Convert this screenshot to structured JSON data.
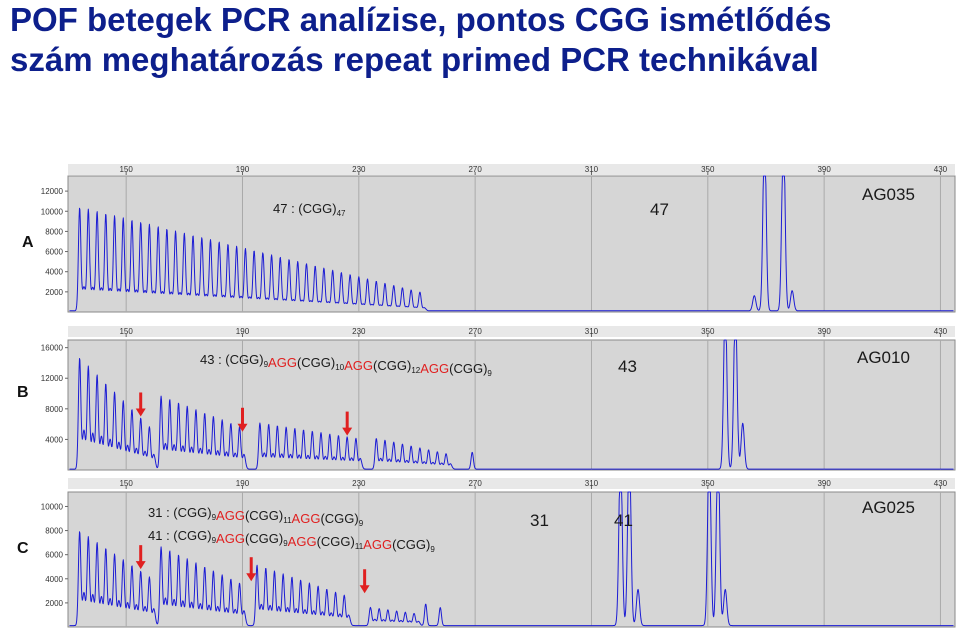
{
  "slide": {
    "title_line1": "POF betegek PCR analízise, pontos CGG ismétlődés",
    "title_line2": "szám meghatározás repeat primed PCR technikával"
  },
  "chart_data": [
    {
      "type": "line",
      "panel": "A",
      "sample": "AG035",
      "x_ticks": [
        150,
        190,
        230,
        270,
        310,
        350,
        390,
        430
      ],
      "xlim": [
        130,
        435
      ],
      "y_ticks": [
        2000,
        4000,
        6000,
        8000,
        10000,
        12000
      ],
      "ylim": [
        0,
        13500
      ],
      "peak_label": "47",
      "annotations": [
        {
          "parts": [
            {
              "t": "47 : (CGG)",
              "c": "#1a1a1a"
            },
            {
              "t": "47",
              "c": "#1a1a1a",
              "sub": true
            }
          ]
        }
      ],
      "stutter": {
        "start": 134,
        "step": 3,
        "end": 253,
        "base": 4300,
        "peak_first": 10200,
        "peak_last": 1700
      },
      "peaks": [
        {
          "x": 369.5,
          "y": 18000
        },
        {
          "x": 376,
          "y": 18000
        },
        {
          "x": 366,
          "y": 1500
        },
        {
          "x": 379,
          "y": 2000
        }
      ],
      "arrows": []
    },
    {
      "type": "line",
      "panel": "B",
      "sample": "AG010",
      "x_ticks": [
        150,
        190,
        230,
        270,
        310,
        350,
        390,
        430
      ],
      "xlim": [
        130,
        435
      ],
      "y_ticks": [
        4000,
        8000,
        12000,
        16000
      ],
      "ylim": [
        0,
        17000
      ],
      "peak_label": "43",
      "annotations": [
        {
          "parts": [
            {
              "t": "43 : (CGG)",
              "c": "#1a1a1a"
            },
            {
              "t": "9",
              "c": "#1a1a1a",
              "sub": true
            },
            {
              "t": "AGG",
              "c": "#e02020"
            },
            {
              "t": "(CGG)",
              "c": "#1a1a1a"
            },
            {
              "t": "10",
              "c": "#1a1a1a",
              "sub": true
            },
            {
              "t": "AGG",
              "c": "#e02020"
            },
            {
              "t": "(CGG)",
              "c": "#1a1a1a"
            },
            {
              "t": "12",
              "c": "#1a1a1a",
              "sub": true
            },
            {
              "t": "AGG",
              "c": "#e02020"
            },
            {
              "t": "(CGG)",
              "c": "#1a1a1a"
            },
            {
              "t": "9",
              "c": "#1a1a1a",
              "sub": true
            }
          ]
        }
      ],
      "clusters": [
        {
          "start": 134,
          "n": 9,
          "peak_first": 14500,
          "peak_last": 5500
        },
        {
          "start": 162,
          "n": 10,
          "peak_first": 9500,
          "peak_last": 5500
        },
        {
          "start": 196,
          "n": 12,
          "peak_first": 6000,
          "peak_last": 4000
        },
        {
          "start": 236,
          "n": 9,
          "peak_first": 4000,
          "peak_last": 2000
        }
      ],
      "peaks": [
        {
          "x": 356,
          "y": 22000
        },
        {
          "x": 359.5,
          "y": 22000
        },
        {
          "x": 362,
          "y": 6000
        }
      ],
      "small_peaks": [
        {
          "x": 269,
          "y": 2200
        }
      ],
      "arrows": [
        {
          "x": 155,
          "y": 7000
        },
        {
          "x": 190,
          "y": 5000
        },
        {
          "x": 226,
          "y": 4500
        }
      ]
    },
    {
      "type": "line",
      "panel": "C",
      "sample": "AG025",
      "x_ticks": [
        150,
        190,
        230,
        270,
        310,
        350,
        390,
        430
      ],
      "xlim": [
        130,
        435
      ],
      "y_ticks": [
        2000,
        4000,
        6000,
        8000,
        10000
      ],
      "ylim": [
        0,
        11200
      ],
      "peak_label_31": "31",
      "peak_label_41": "41",
      "annotations": [
        {
          "parts": [
            {
              "t": "31 : (CGG)",
              "c": "#1a1a1a"
            },
            {
              "t": "9",
              "c": "#1a1a1a",
              "sub": true
            },
            {
              "t": "AGG",
              "c": "#e02020"
            },
            {
              "t": "(CGG)",
              "c": "#1a1a1a"
            },
            {
              "t": "11",
              "c": "#1a1a1a",
              "sub": true
            },
            {
              "t": "AGG",
              "c": "#e02020"
            },
            {
              "t": "(CGG)",
              "c": "#1a1a1a"
            },
            {
              "t": "9",
              "c": "#1a1a1a",
              "sub": true
            }
          ]
        },
        {
          "parts": [
            {
              "t": "41 : (CGG)",
              "c": "#1a1a1a"
            },
            {
              "t": "9",
              "c": "#1a1a1a",
              "sub": true
            },
            {
              "t": "AGG",
              "c": "#e02020"
            },
            {
              "t": "(CGG)",
              "c": "#1a1a1a"
            },
            {
              "t": "9",
              "c": "#1a1a1a",
              "sub": true
            },
            {
              "t": "AGG",
              "c": "#e02020"
            },
            {
              "t": "(CGG)",
              "c": "#1a1a1a"
            },
            {
              "t": "11",
              "c": "#1a1a1a",
              "sub": true
            },
            {
              "t": "AGG",
              "c": "#e02020"
            },
            {
              "t": "(CGG)",
              "c": "#1a1a1a"
            },
            {
              "t": "9",
              "c": "#1a1a1a",
              "sub": true
            }
          ]
        }
      ],
      "clusters": [
        {
          "start": 134,
          "n": 9,
          "peak_first": 7800,
          "peak_last": 4000
        },
        {
          "start": 162,
          "n": 10,
          "peak_first": 6500,
          "peak_last": 3500
        },
        {
          "start": 195,
          "n": 11,
          "peak_first": 5000,
          "peak_last": 2500
        },
        {
          "start": 234,
          "n": 6,
          "peak_first": 1500,
          "peak_last": 1000
        }
      ],
      "peaks": [
        {
          "x": 320,
          "y": 15000
        },
        {
          "x": 323,
          "y": 15000
        },
        {
          "x": 350.5,
          "y": 15000
        },
        {
          "x": 353.5,
          "y": 15000
        },
        {
          "x": 326,
          "y": 3000
        },
        {
          "x": 356,
          "y": 3000
        }
      ],
      "small_peaks": [
        {
          "x": 253,
          "y": 1800
        },
        {
          "x": 258,
          "y": 1500
        }
      ],
      "arrows": [
        {
          "x": 155,
          "y": 4800
        },
        {
          "x": 193,
          "y": 3800
        },
        {
          "x": 232,
          "y": 2800
        }
      ]
    }
  ],
  "colors": {
    "title": "#0d1f8c",
    "trace": "#1c1cd4",
    "arrow": "#e02020",
    "plot_bg": "#d6d6d6",
    "grid": "#aaaaaa"
  }
}
